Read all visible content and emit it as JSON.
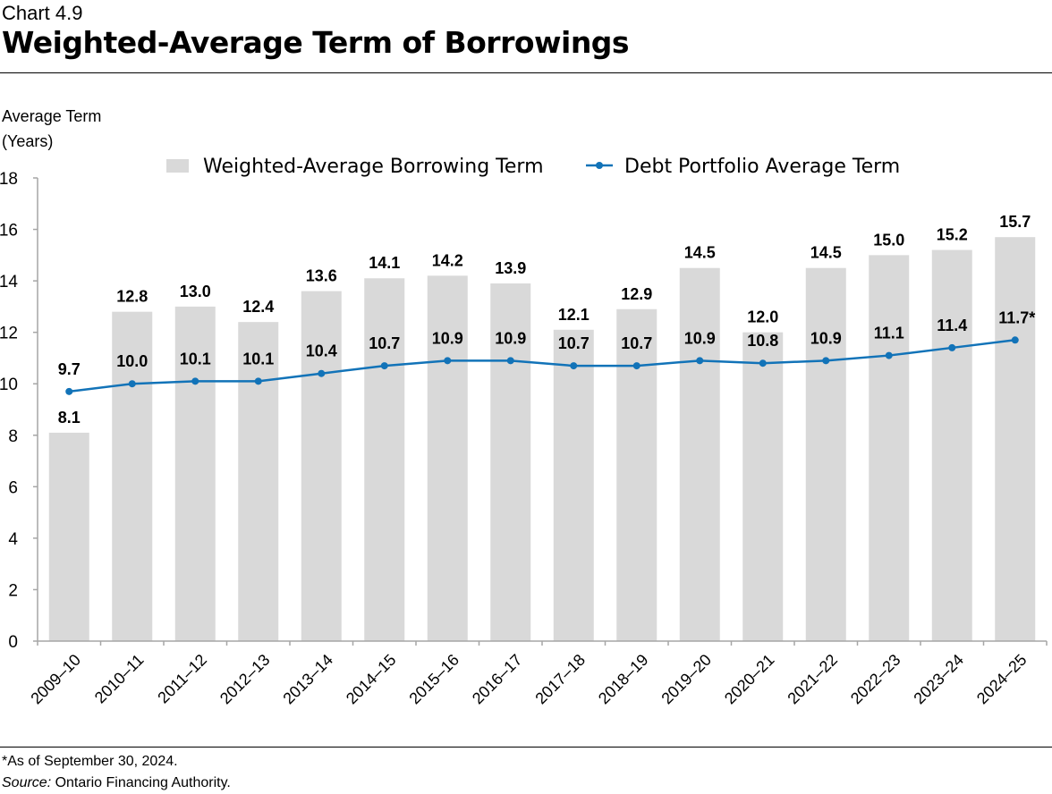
{
  "header": {
    "kicker": "Chart 4.9",
    "title": "Weighted-Average Term of Borrowings"
  },
  "footer": {
    "note": "*As of September 30, 2024.",
    "source_label": "Source:",
    "source_text": " Ontario Financing Authority."
  },
  "chart_data": {
    "type": "bar",
    "title": "Weighted-Average Term of Borrowings",
    "ylabel": [
      "Average Term",
      "(Years)"
    ],
    "xlabel": "",
    "ylim": [
      0,
      18
    ],
    "yticks": [
      0,
      2,
      4,
      6,
      8,
      10,
      12,
      14,
      16,
      18
    ],
    "grid": false,
    "legend": "top",
    "categories": [
      "2009–10",
      "2010–11",
      "2011–12",
      "2012–13",
      "2013–14",
      "2014–15",
      "2015–16",
      "2016–17",
      "2017–18",
      "2018–19",
      "2019–20",
      "2020–21",
      "2021–22",
      "2022–23",
      "2023–24",
      "2024–25"
    ],
    "series": [
      {
        "name": "Weighted-Average Borrowing Term",
        "type": "bar",
        "color": "#d9d9d9",
        "values": [
          8.1,
          12.8,
          13.0,
          12.4,
          13.6,
          14.1,
          14.2,
          13.9,
          12.1,
          12.9,
          14.5,
          12.0,
          14.5,
          15.0,
          15.2,
          15.7
        ],
        "labels": [
          "8.1",
          "12.8",
          "13.0",
          "12.4",
          "13.6",
          "14.1",
          "14.2",
          "13.9",
          "12.1",
          "12.9",
          "14.5",
          "12.0",
          "14.5",
          "15.0",
          "15.2",
          "15.7"
        ]
      },
      {
        "name": "Debt Portfolio Average Term",
        "type": "line",
        "color": "#1273b8",
        "values": [
          9.7,
          10.0,
          10.1,
          10.1,
          10.4,
          10.7,
          10.9,
          10.9,
          10.7,
          10.7,
          10.9,
          10.8,
          10.9,
          11.1,
          11.4,
          11.7
        ],
        "labels": [
          "9.7",
          "10.0",
          "10.1",
          "10.1",
          "10.4",
          "10.7",
          "10.9",
          "10.9",
          "10.7",
          "10.7",
          "10.9",
          "10.8",
          "10.9",
          "11.1",
          "11.4",
          "11.7*"
        ]
      }
    ]
  }
}
